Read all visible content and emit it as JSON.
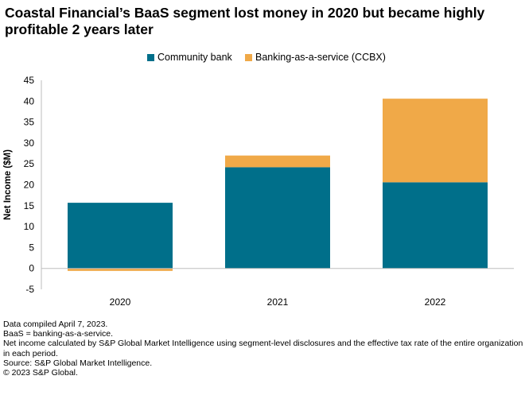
{
  "title": "Coastal Financial’s BaaS segment lost money in 2020 but became highly profitable 2 years later",
  "chart_data": {
    "type": "bar",
    "stacked": true,
    "categories": [
      "2020",
      "2021",
      "2022"
    ],
    "series": [
      {
        "name": "Community bank",
        "color": "#006f8a",
        "values": [
          15.7,
          24.2,
          20.6
        ]
      },
      {
        "name": "Banking-as-a-service (CCBX)",
        "color": "#f0a948",
        "values": [
          -0.6,
          2.8,
          20.0
        ]
      }
    ],
    "ylabel": "Net Income ($M)",
    "ylim": [
      -5,
      45
    ],
    "yticks": [
      -5,
      0,
      5,
      10,
      15,
      20,
      25,
      30,
      35,
      40,
      45
    ],
    "grid": false,
    "legend_position": "top"
  },
  "footnotes": [
    "Data compiled April 7, 2023.",
    "BaaS = banking-as-a-service.",
    "Net income calculated by S&P Global Market Intelligence using segment-level disclosures and the effective tax rate of the entire organization in each period.",
    "Source: S&P Global Market Intelligence.",
    "© 2023 S&P Global."
  ]
}
